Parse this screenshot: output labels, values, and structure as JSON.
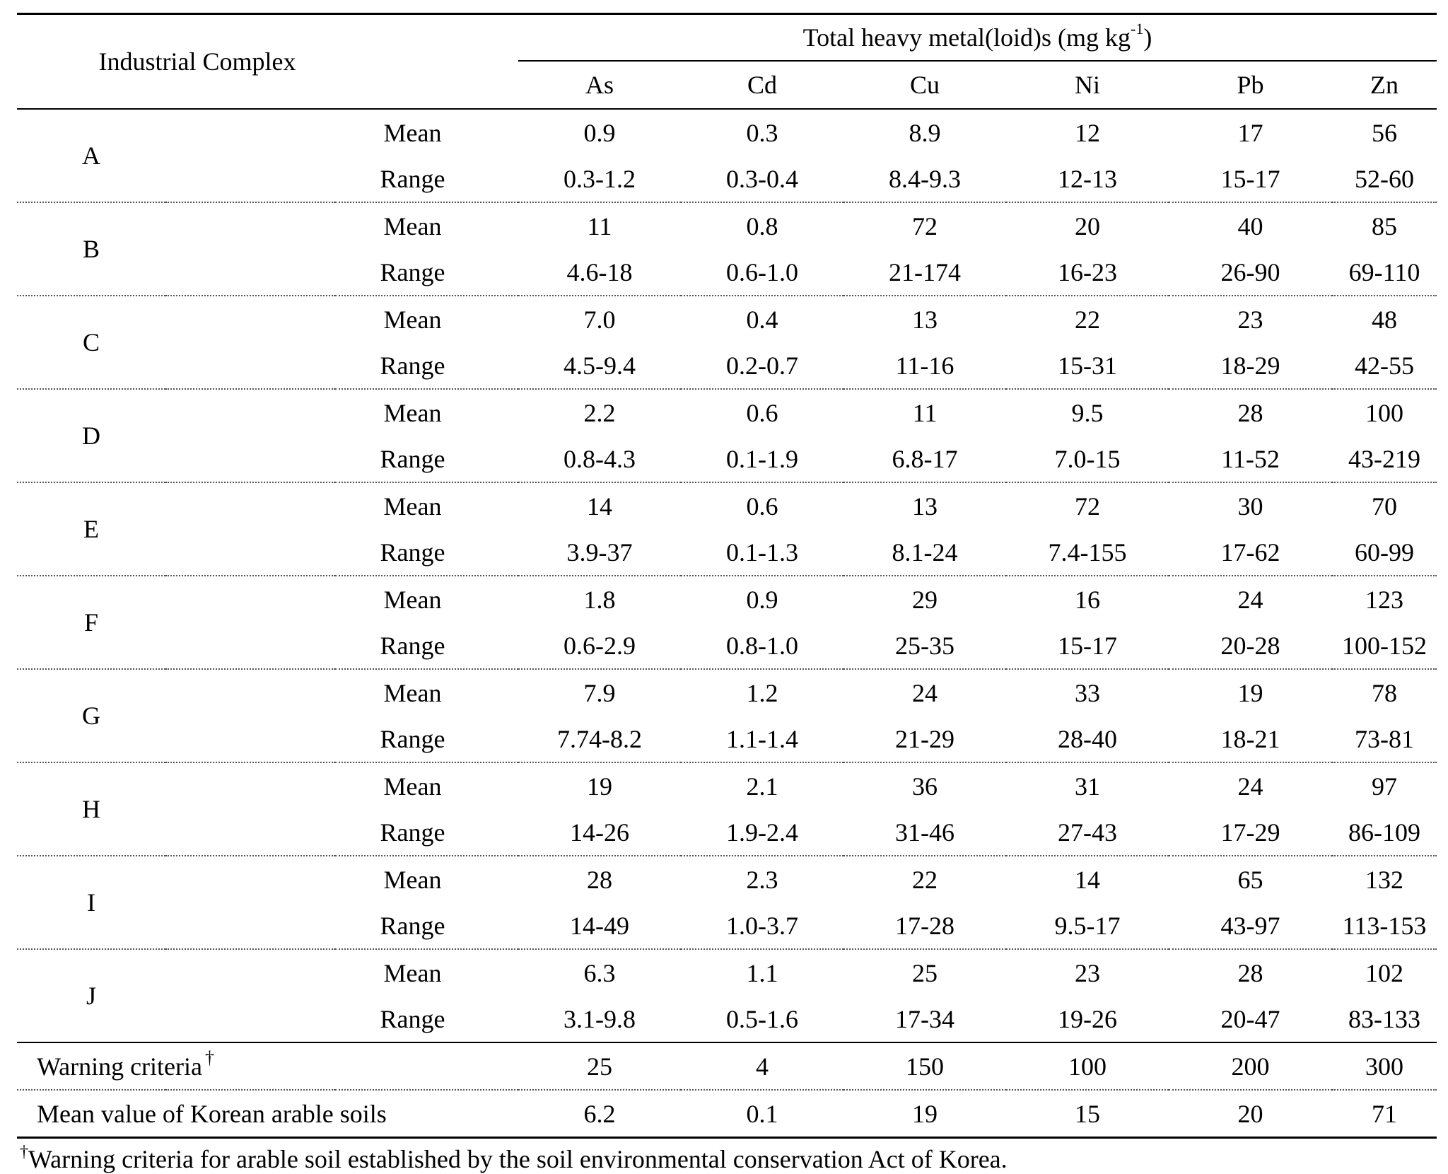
{
  "header": {
    "industrial_complex": "Industrial Complex",
    "group_title": "Total heavy metal(loid)s (mg kg",
    "group_title_sup": "-1",
    "group_title_end": ")",
    "metals": [
      "As",
      "Cd",
      "Cu",
      "Ni",
      "Pb",
      "Zn"
    ]
  },
  "rows": [
    {
      "site": "A",
      "mean_label": "Mean",
      "range_label": "Range",
      "mean": [
        "0.9",
        "0.3",
        "8.9",
        "12",
        "17",
        "56"
      ],
      "range": [
        "0.3-1.2",
        "0.3-0.4",
        "8.4-9.3",
        "12-13",
        "15-17",
        "52-60"
      ]
    },
    {
      "site": "B",
      "mean_label": "Mean",
      "range_label": "Range",
      "mean": [
        "11",
        "0.8",
        "72",
        "20",
        "40",
        "85"
      ],
      "range": [
        "4.6-18",
        "0.6-1.0",
        "21-174",
        "16-23",
        "26-90",
        "69-110"
      ]
    },
    {
      "site": "C",
      "mean_label": "Mean",
      "range_label": "Range",
      "mean": [
        "7.0",
        "0.4",
        "13",
        "22",
        "23",
        "48"
      ],
      "range": [
        "4.5-9.4",
        "0.2-0.7",
        "11-16",
        "15-31",
        "18-29",
        "42-55"
      ]
    },
    {
      "site": "D",
      "mean_label": "Mean",
      "range_label": "Range",
      "mean": [
        "2.2",
        "0.6",
        "11",
        "9.5",
        "28",
        "100"
      ],
      "range": [
        "0.8-4.3",
        "0.1-1.9",
        "6.8-17",
        "7.0-15",
        "11-52",
        "43-219"
      ]
    },
    {
      "site": "E",
      "mean_label": "Mean",
      "range_label": "Range",
      "mean": [
        "14",
        "0.6",
        "13",
        "72",
        "30",
        "70"
      ],
      "range": [
        "3.9-37",
        "0.1-1.3",
        "8.1-24",
        "7.4-155",
        "17-62",
        "60-99"
      ]
    },
    {
      "site": "F",
      "mean_label": "Mean",
      "range_label": "Range",
      "mean": [
        "1.8",
        "0.9",
        "29",
        "16",
        "24",
        "123"
      ],
      "range": [
        "0.6-2.9",
        "0.8-1.0",
        "25-35",
        "15-17",
        "20-28",
        "100-152"
      ]
    },
    {
      "site": "G",
      "mean_label": "Mean",
      "range_label": "Range",
      "mean": [
        "7.9",
        "1.2",
        "24",
        "33",
        "19",
        "78"
      ],
      "range": [
        "7.74-8.2",
        "1.1-1.4",
        "21-29",
        "28-40",
        "18-21",
        "73-81"
      ]
    },
    {
      "site": "H",
      "mean_label": "Mean",
      "range_label": "Range",
      "mean": [
        "19",
        "2.1",
        "36",
        "31",
        "24",
        "97"
      ],
      "range": [
        "14-26",
        "1.9-2.4",
        "31-46",
        "27-43",
        "17-29",
        "86-109"
      ]
    },
    {
      "site": "I",
      "mean_label": "Mean",
      "range_label": "Range",
      "mean": [
        "28",
        "2.3",
        "22",
        "14",
        "65",
        "132"
      ],
      "range": [
        "14-49",
        "1.0-3.7",
        "17-28",
        "9.5-17",
        "43-97",
        "113-153"
      ]
    },
    {
      "site": "J",
      "mean_label": "Mean",
      "range_label": "Range",
      "mean": [
        "6.3",
        "1.1",
        "25",
        "23",
        "28",
        "102"
      ],
      "range": [
        "3.1-9.8",
        "0.5-1.6",
        "17-34",
        "19-26",
        "20-47",
        "83-133"
      ]
    }
  ],
  "warning": {
    "label": "Warning criteria",
    "dagger": "†",
    "values": [
      "25",
      "4",
      "150",
      "100",
      "200",
      "300"
    ]
  },
  "korean_mean": {
    "label": "Mean value of Korean arable soils",
    "values": [
      "6.2",
      "0.1",
      "19",
      "15",
      "20",
      "71"
    ]
  },
  "footnote": {
    "dagger": "†",
    "text": "Warning criteria for arable soil established by the soil environmental conservation Act of Korea."
  }
}
